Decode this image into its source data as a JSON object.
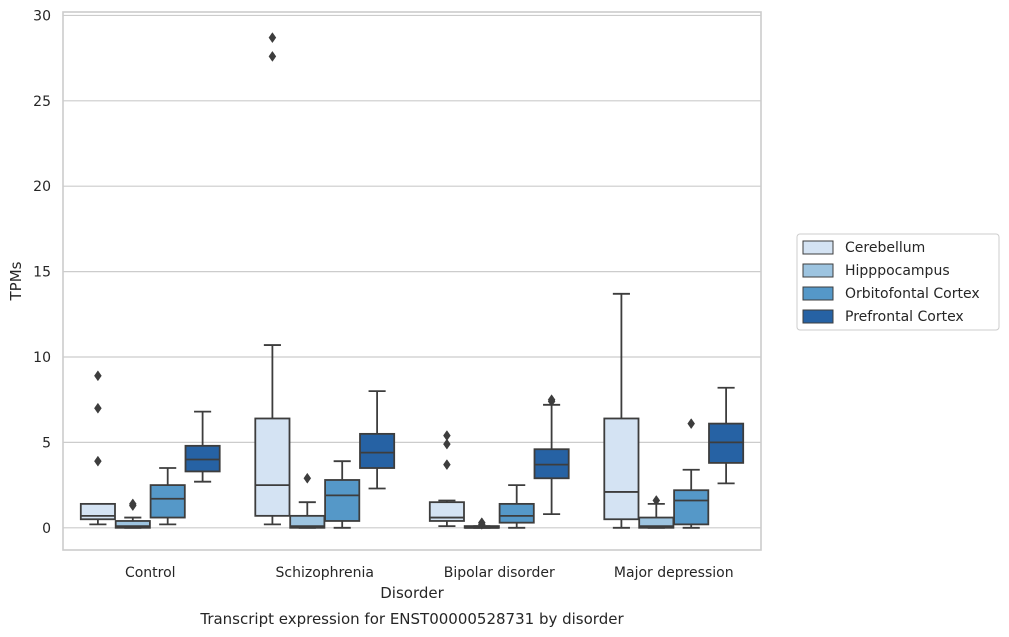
{
  "caption": "Transcript expression for ENST00000528731 by disorder",
  "chart_data": {
    "type": "boxplot",
    "title": "",
    "xlabel": "Disorder",
    "ylabel": "TPMs",
    "ylim": [
      -1.3,
      30.2
    ],
    "yticks": [
      0,
      5,
      10,
      15,
      20,
      25,
      30
    ],
    "grid": "horizontal",
    "legend_position": "right",
    "categories": [
      "Control",
      "Schizophrenia",
      "Bipolar disorder",
      "Major depression"
    ],
    "series": [
      {
        "name": "Cerebellum",
        "color": "#d4e3f3",
        "boxes": [
          {
            "whislo": 0.2,
            "q1": 0.5,
            "med": 0.7,
            "q3": 1.4,
            "whishi": 1.4,
            "fliers": [
              3.9,
              7.0,
              8.9
            ]
          },
          {
            "whislo": 0.2,
            "q1": 0.7,
            "med": 2.5,
            "q3": 6.4,
            "whishi": 10.7,
            "fliers": [
              27.6,
              28.7
            ]
          },
          {
            "whislo": 0.1,
            "q1": 0.4,
            "med": 0.6,
            "q3": 1.5,
            "whishi": 1.6,
            "fliers": [
              3.7,
              4.9,
              5.4
            ]
          },
          {
            "whislo": 0.0,
            "q1": 0.5,
            "med": 2.1,
            "q3": 6.4,
            "whishi": 13.7,
            "fliers": []
          }
        ]
      },
      {
        "name": "Hipppocampus",
        "color": "#9dc4e0",
        "boxes": [
          {
            "whislo": 0.0,
            "q1": 0.0,
            "med": 0.1,
            "q3": 0.4,
            "whishi": 0.6,
            "fliers": [
              1.3,
              1.4
            ]
          },
          {
            "whislo": 0.0,
            "q1": 0.0,
            "med": 0.1,
            "q3": 0.7,
            "whishi": 1.5,
            "fliers": [
              2.9
            ]
          },
          {
            "whislo": 0.0,
            "q1": 0.0,
            "med": 0.0,
            "q3": 0.1,
            "whishi": 0.1,
            "fliers": [
              0.2,
              0.3
            ]
          },
          {
            "whislo": 0.0,
            "q1": 0.0,
            "med": 0.1,
            "q3": 0.6,
            "whishi": 1.4,
            "fliers": [
              1.6
            ]
          }
        ]
      },
      {
        "name": "Orbitofontal Cortex",
        "color": "#5598c8",
        "boxes": [
          {
            "whislo": 0.2,
            "q1": 0.6,
            "med": 1.7,
            "q3": 2.5,
            "whishi": 3.5,
            "fliers": []
          },
          {
            "whislo": 0.0,
            "q1": 0.4,
            "med": 1.9,
            "q3": 2.8,
            "whishi": 3.9,
            "fliers": []
          },
          {
            "whislo": 0.0,
            "q1": 0.3,
            "med": 0.7,
            "q3": 1.4,
            "whishi": 2.5,
            "fliers": []
          },
          {
            "whislo": 0.0,
            "q1": 0.2,
            "med": 1.6,
            "q3": 2.2,
            "whishi": 3.4,
            "fliers": [
              6.1
            ]
          }
        ]
      },
      {
        "name": "Prefrontal Cortex",
        "color": "#2662a4",
        "boxes": [
          {
            "whislo": 2.7,
            "q1": 3.3,
            "med": 4.0,
            "q3": 4.8,
            "whishi": 6.8,
            "fliers": []
          },
          {
            "whislo": 2.3,
            "q1": 3.5,
            "med": 4.4,
            "q3": 5.5,
            "whishi": 8.0,
            "fliers": []
          },
          {
            "whislo": 0.8,
            "q1": 2.9,
            "med": 3.7,
            "q3": 4.6,
            "whishi": 7.2,
            "fliers": [
              7.4,
              7.5
            ]
          },
          {
            "whislo": 2.6,
            "q1": 3.8,
            "med": 5.0,
            "q3": 6.1,
            "whishi": 8.2,
            "fliers": []
          }
        ]
      }
    ]
  }
}
